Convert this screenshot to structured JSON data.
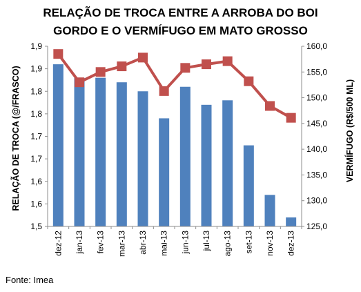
{
  "chart_data": {
    "type": "bar+line",
    "title_line1": "RELAÇÃO DE TROCA ENTRE A ARROBA DO BOI",
    "title_line2": "GORDO E O VERMÍFUGO EM MATO GROSSO",
    "categories": [
      "dez-12",
      "jan-13",
      "fev-13",
      "mar-13",
      "abr-13",
      "mai-13",
      "jun-13",
      "jul-13",
      "ago-13",
      "set-13",
      "nov-13",
      "dez-13"
    ],
    "left_axis": {
      "label": "RELAÇÃO DE TROCA (@/FRASCO)",
      "tick_labels": [
        "1,5",
        "1,6",
        "1,6",
        "1,7",
        "1,7",
        "1,8",
        "1,8",
        "1,9",
        "1,9"
      ],
      "ylim": [
        1.5,
        1.9
      ]
    },
    "right_axis": {
      "label": "VERMÍFUGO (R$/500 ML)",
      "tick_labels": [
        "125,0",
        "130,0",
        "135,0",
        "140,0",
        "145,0",
        "150,0",
        "155,0",
        "160,0"
      ],
      "ylim": [
        125,
        160
      ]
    },
    "series": [
      {
        "type": "bar",
        "axis": "left",
        "color": "#4f81bd",
        "values": [
          1.86,
          1.83,
          1.83,
          1.82,
          1.8,
          1.74,
          1.81,
          1.77,
          1.78,
          1.68,
          1.57,
          1.52
        ]
      },
      {
        "type": "line",
        "axis": "right",
        "color": "#c0504d",
        "values": [
          158.5,
          153.0,
          155.0,
          156.1,
          157.8,
          151.3,
          155.8,
          156.5,
          157.1,
          153.2,
          148.4,
          146.1
        ]
      }
    ]
  },
  "source": "Fonte: Imea"
}
